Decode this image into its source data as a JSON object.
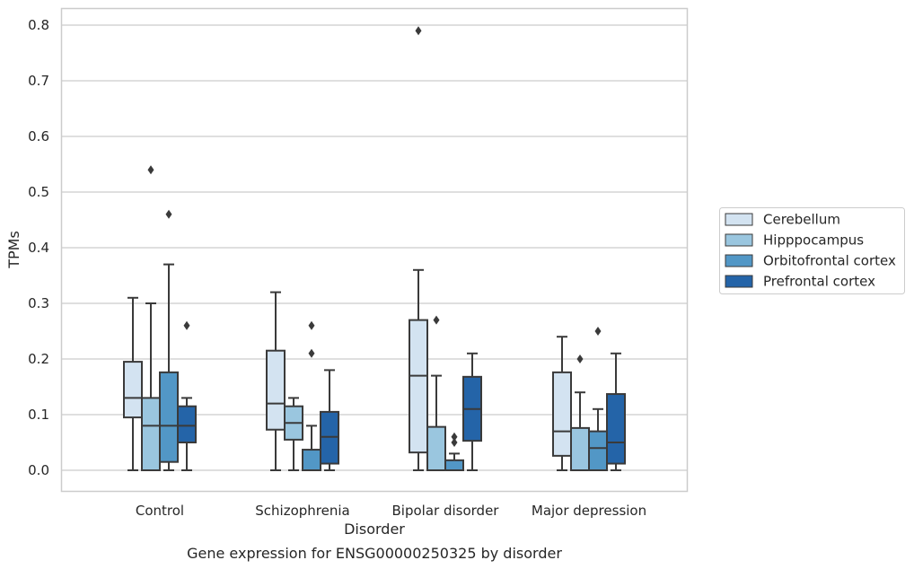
{
  "chart_data": {
    "type": "box",
    "categories": [
      "Control",
      "Schizophrenia",
      "Bipolar disorder",
      "Major depression"
    ],
    "xlabel": "Disorder",
    "ylabel": "TPMs",
    "caption": "Gene expression for ENSG00000250325 by disorder",
    "ylim": [
      -0.04,
      0.83
    ],
    "yticks": [
      0.0,
      0.1,
      0.2,
      0.3,
      0.4,
      0.5,
      0.6,
      0.7,
      0.8
    ],
    "ytick_labels": [
      "0.0",
      "0.1",
      "0.2",
      "0.3",
      "0.4",
      "0.5",
      "0.6",
      "0.7",
      "0.8"
    ],
    "grid": "horizontal",
    "legend_position": "right",
    "series": [
      {
        "name": "Cerebellum",
        "color": "#d3e3f1",
        "boxes": [
          {
            "whisker_low": 0.0,
            "q1": 0.095,
            "median": 0.13,
            "q3": 0.195,
            "whisker_high": 0.31,
            "outliers": []
          },
          {
            "whisker_low": 0.0,
            "q1": 0.073,
            "median": 0.12,
            "q3": 0.215,
            "whisker_high": 0.32,
            "outliers": []
          },
          {
            "whisker_low": 0.0,
            "q1": 0.032,
            "median": 0.17,
            "q3": 0.27,
            "whisker_high": 0.36,
            "outliers": [
              0.79
            ]
          },
          {
            "whisker_low": 0.0,
            "q1": 0.026,
            "median": 0.07,
            "q3": 0.176,
            "whisker_high": 0.24,
            "outliers": []
          }
        ]
      },
      {
        "name": "Hipppocampus",
        "color": "#9ac6df",
        "boxes": [
          {
            "whisker_low": 0.0,
            "q1": 0.0,
            "median": 0.08,
            "q3": 0.13,
            "whisker_high": 0.3,
            "outliers": [
              0.54
            ]
          },
          {
            "whisker_low": 0.0,
            "q1": 0.055,
            "median": 0.085,
            "q3": 0.115,
            "whisker_high": 0.13,
            "outliers": []
          },
          {
            "whisker_low": 0.0,
            "q1": 0.0,
            "median": 0.0,
            "q3": 0.078,
            "whisker_high": 0.17,
            "outliers": [
              0.27
            ]
          },
          {
            "whisker_low": 0.0,
            "q1": 0.0,
            "median": 0.0,
            "q3": 0.076,
            "whisker_high": 0.14,
            "outliers": [
              0.2
            ]
          }
        ]
      },
      {
        "name": "Orbitofrontal cortex",
        "color": "#5297c6",
        "boxes": [
          {
            "whisker_low": 0.0,
            "q1": 0.015,
            "median": 0.08,
            "q3": 0.176,
            "whisker_high": 0.37,
            "outliers": [
              0.46
            ]
          },
          {
            "whisker_low": 0.0,
            "q1": 0.0,
            "median": 0.0,
            "q3": 0.037,
            "whisker_high": 0.08,
            "outliers": [
              0.26,
              0.21
            ]
          },
          {
            "whisker_low": 0.0,
            "q1": 0.0,
            "median": 0.0,
            "q3": 0.018,
            "whisker_high": 0.03,
            "outliers": [
              0.06,
              0.05
            ]
          },
          {
            "whisker_low": 0.0,
            "q1": 0.0,
            "median": 0.04,
            "q3": 0.07,
            "whisker_high": 0.11,
            "outliers": [
              0.25
            ]
          }
        ]
      },
      {
        "name": "Prefrontal cortex",
        "color": "#2464a8",
        "boxes": [
          {
            "whisker_low": 0.0,
            "q1": 0.05,
            "median": 0.08,
            "q3": 0.115,
            "whisker_high": 0.13,
            "outliers": [
              0.26
            ]
          },
          {
            "whisker_low": 0.0,
            "q1": 0.012,
            "median": 0.06,
            "q3": 0.105,
            "whisker_high": 0.18,
            "outliers": []
          },
          {
            "whisker_low": 0.0,
            "q1": 0.053,
            "median": 0.11,
            "q3": 0.168,
            "whisker_high": 0.21,
            "outliers": []
          },
          {
            "whisker_low": 0.0,
            "q1": 0.012,
            "median": 0.05,
            "q3": 0.137,
            "whisker_high": 0.21,
            "outliers": []
          }
        ]
      }
    ]
  }
}
